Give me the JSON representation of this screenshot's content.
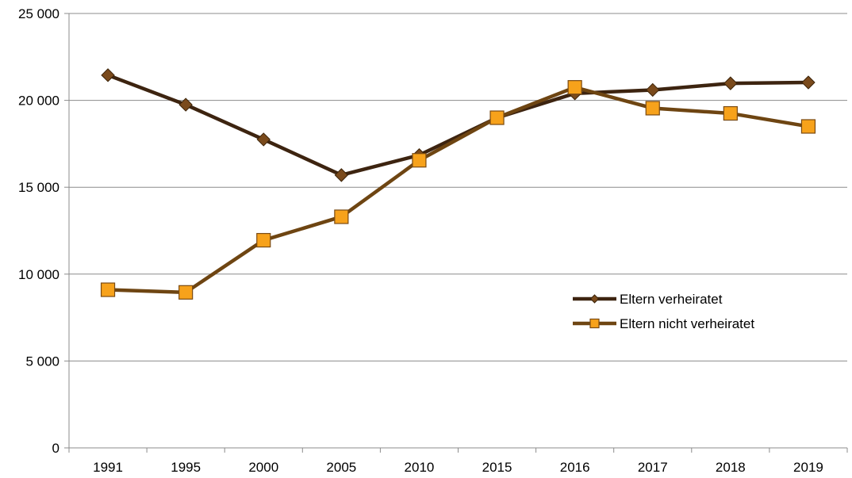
{
  "chart_data": {
    "type": "line",
    "title": "",
    "xlabel": "",
    "ylabel": "",
    "categories": [
      "1991",
      "1995",
      "2000",
      "2005",
      "2010",
      "2015",
      "2016",
      "2017",
      "2018",
      "2019"
    ],
    "ylim": [
      0,
      25000
    ],
    "yticks": [
      0,
      5000,
      10000,
      15000,
      20000,
      25000
    ],
    "ytick_labels": [
      "0",
      "5 000",
      "10 000",
      "15 000",
      "20 000",
      "25 000"
    ],
    "grid": "horizontal",
    "legend_position": "right-middle",
    "series": [
      {
        "name": "Eltern verheiratet",
        "marker": "diamond",
        "color": "#3d2410",
        "marker_color": "#7a4a1c",
        "values": [
          21450,
          19750,
          17750,
          15700,
          16850,
          19000,
          20400,
          20600,
          20980,
          21030
        ]
      },
      {
        "name": "Eltern nicht verheiratet",
        "marker": "square",
        "color": "#6e4512",
        "marker_color": "#f7a21b",
        "values": [
          9100,
          8950,
          11950,
          13300,
          16550,
          19000,
          20750,
          19550,
          19250,
          18500
        ]
      }
    ]
  }
}
